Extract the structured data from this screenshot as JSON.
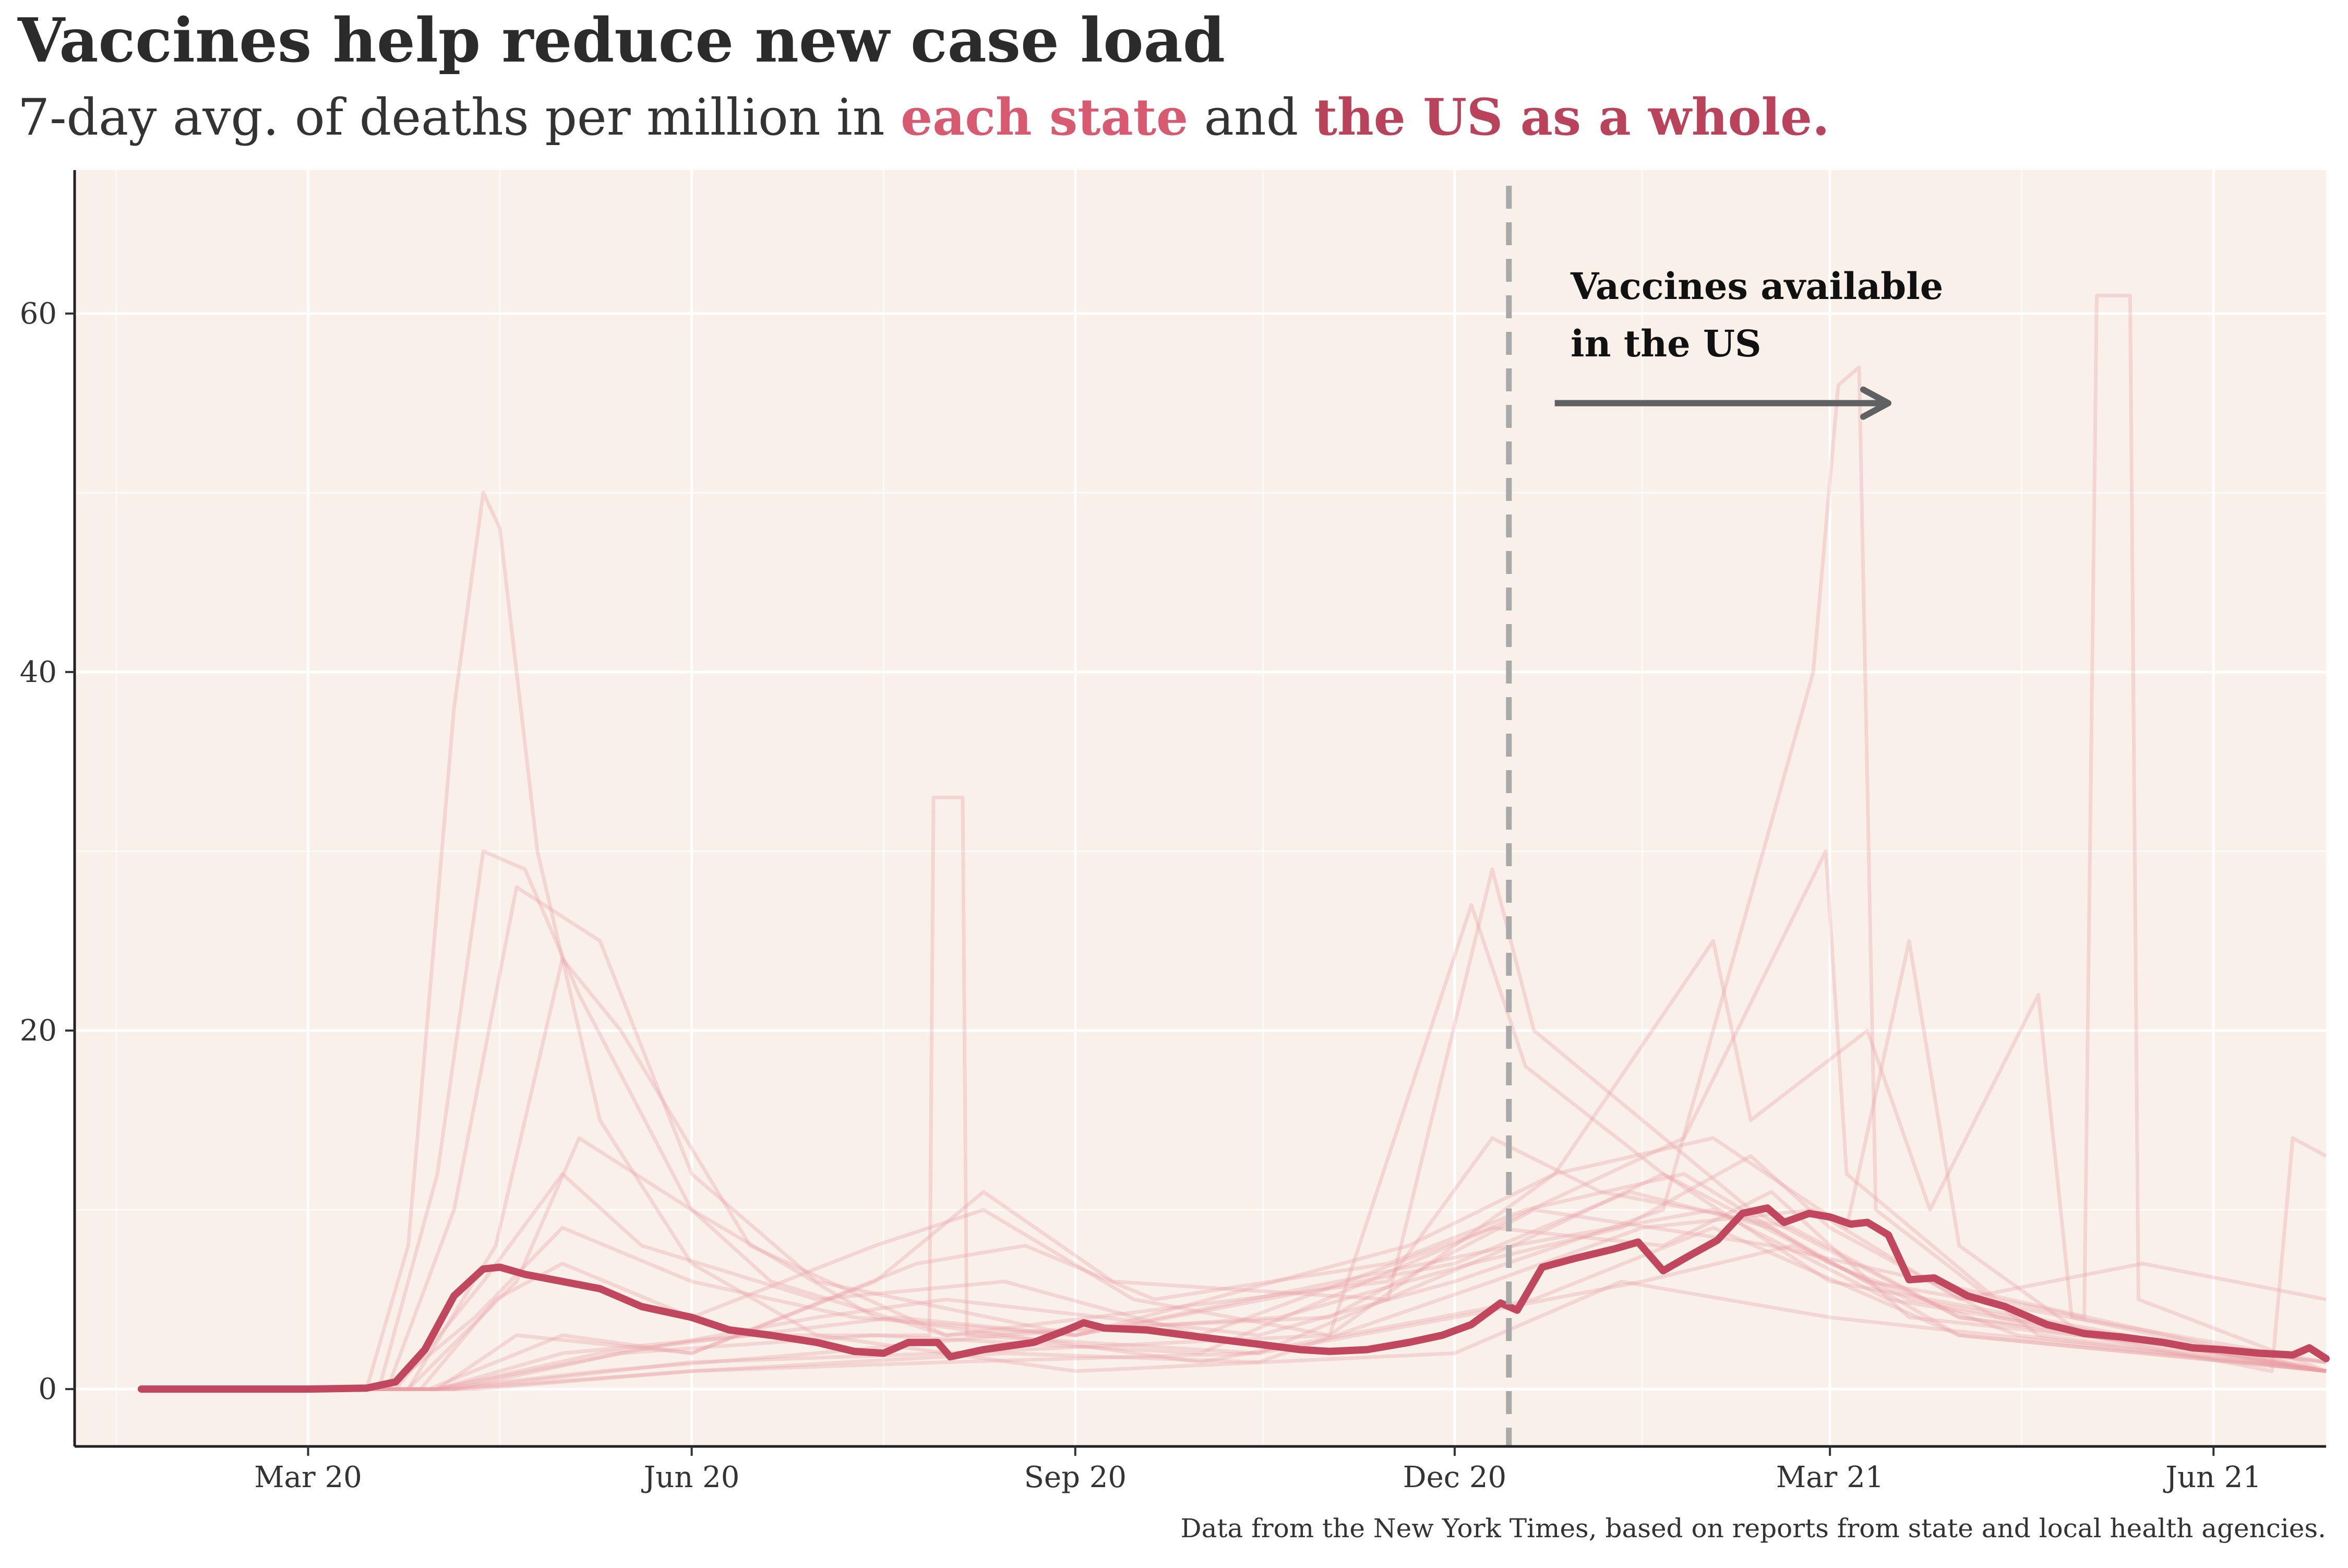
{
  "colors": {
    "panel_bg": "#f8f0e9",
    "grid": "#ffffff",
    "state_line": "#e8a0a6",
    "us_line": "#c0475d",
    "subtitle_each_state": "#d85a70",
    "subtitle_us": "#b8435a",
    "vline": "#a9a9a9",
    "arrow": "#5f6163"
  },
  "chart_data": {
    "type": "line",
    "title": "Vaccines help reduce new case load",
    "subtitle": {
      "prefix": "7-day avg. of deaths per million in ",
      "each_state": "each state",
      "mid": " and ",
      "us": "the US as a whole."
    },
    "caption": "Data from the New York Times, based on reports from state and local health agencies.",
    "xlabel": "",
    "ylabel": "",
    "x_ticks": [
      "Mar 20",
      "Jun 20",
      "Sep 20",
      "Dec 20",
      "Mar 21",
      "Jun 21"
    ],
    "x_tick_dates": [
      "2020-03-01",
      "2020-06-01",
      "2020-09-01",
      "2020-12-01",
      "2021-03-01",
      "2021-06-01"
    ],
    "y_ticks": [
      0,
      20,
      40,
      60
    ],
    "xlim": [
      "2020-01-05",
      "2021-06-28"
    ],
    "ylim": [
      -3.2,
      68
    ],
    "grid": true,
    "vline": {
      "x": "2020-12-14",
      "style": "dashed"
    },
    "annotation": {
      "lines": [
        "Vaccines available",
        "in the US"
      ],
      "arrow_from": "2020-12-25",
      "arrow_to": "2021-03-15",
      "arrow_y": 55
    },
    "us_series": {
      "name": "the US as a whole.",
      "points": [
        [
          "2020-01-21",
          0
        ],
        [
          "2020-03-01",
          0
        ],
        [
          "2020-03-15",
          0.05
        ],
        [
          "2020-03-22",
          0.4
        ],
        [
          "2020-03-29",
          2.2
        ],
        [
          "2020-04-05",
          5.2
        ],
        [
          "2020-04-12",
          6.7
        ],
        [
          "2020-04-16",
          6.8
        ],
        [
          "2020-04-22",
          6.4
        ],
        [
          "2020-05-01",
          6.0
        ],
        [
          "2020-05-10",
          5.6
        ],
        [
          "2020-05-20",
          4.6
        ],
        [
          "2020-06-01",
          4.0
        ],
        [
          "2020-06-10",
          3.3
        ],
        [
          "2020-06-20",
          3.0
        ],
        [
          "2020-07-01",
          2.6
        ],
        [
          "2020-07-10",
          2.1
        ],
        [
          "2020-07-17",
          2.0
        ],
        [
          "2020-07-23",
          2.6
        ],
        [
          "2020-07-30",
          2.6
        ],
        [
          "2020-08-02",
          1.8
        ],
        [
          "2020-08-10",
          2.2
        ],
        [
          "2020-08-22",
          2.6
        ],
        [
          "2020-08-30",
          3.3
        ],
        [
          "2020-09-03",
          3.7
        ],
        [
          "2020-09-08",
          3.4
        ],
        [
          "2020-09-18",
          3.3
        ],
        [
          "2020-10-01",
          2.9
        ],
        [
          "2020-10-15",
          2.5
        ],
        [
          "2020-10-25",
          2.2
        ],
        [
          "2020-11-01",
          2.1
        ],
        [
          "2020-11-10",
          2.2
        ],
        [
          "2020-11-20",
          2.6
        ],
        [
          "2020-11-28",
          3.0
        ],
        [
          "2020-12-05",
          3.6
        ],
        [
          "2020-12-12",
          4.8
        ],
        [
          "2020-12-16",
          4.4
        ],
        [
          "2020-12-22",
          6.8
        ],
        [
          "2020-12-30",
          7.3
        ],
        [
          "2021-01-08",
          7.8
        ],
        [
          "2021-01-14",
          8.2
        ],
        [
          "2021-01-20",
          6.6
        ],
        [
          "2021-01-26",
          7.4
        ],
        [
          "2021-02-02",
          8.3
        ],
        [
          "2021-02-08",
          9.8
        ],
        [
          "2021-02-14",
          10.1
        ],
        [
          "2021-02-18",
          9.3
        ],
        [
          "2021-02-24",
          9.8
        ],
        [
          "2021-03-01",
          9.6
        ],
        [
          "2021-03-06",
          9.2
        ],
        [
          "2021-03-10",
          9.3
        ],
        [
          "2021-03-15",
          8.6
        ],
        [
          "2021-03-20",
          6.1
        ],
        [
          "2021-03-26",
          6.2
        ],
        [
          "2021-04-03",
          5.2
        ],
        [
          "2021-04-12",
          4.6
        ],
        [
          "2021-04-22",
          3.6
        ],
        [
          "2021-05-01",
          3.1
        ],
        [
          "2021-05-10",
          2.9
        ],
        [
          "2021-05-20",
          2.6
        ],
        [
          "2021-05-27",
          2.3
        ],
        [
          "2021-06-03",
          2.2
        ],
        [
          "2021-06-12",
          2.0
        ],
        [
          "2021-06-20",
          1.9
        ],
        [
          "2021-06-24",
          2.3
        ],
        [
          "2021-06-28",
          1.7
        ]
      ]
    },
    "state_series_note": "each state",
    "state_series": [
      [
        [
          "2020-01-21",
          0
        ],
        [
          "2020-03-15",
          0
        ],
        [
          "2020-03-25",
          8
        ],
        [
          "2020-04-05",
          38
        ],
        [
          "2020-04-12",
          50
        ],
        [
          "2020-04-16",
          48
        ],
        [
          "2020-04-25",
          30
        ],
        [
          "2020-05-10",
          15
        ],
        [
          "2020-06-01",
          7
        ],
        [
          "2020-07-01",
          3
        ],
        [
          "2020-09-01",
          1
        ],
        [
          "2020-12-01",
          2
        ],
        [
          "2021-01-10",
          6
        ],
        [
          "2021-03-01",
          4
        ],
        [
          "2021-06-28",
          1
        ]
      ],
      [
        [
          "2020-01-21",
          0
        ],
        [
          "2020-03-18",
          0
        ],
        [
          "2020-04-01",
          12
        ],
        [
          "2020-04-12",
          30
        ],
        [
          "2020-04-22",
          29
        ],
        [
          "2020-05-05",
          22
        ],
        [
          "2020-06-01",
          10
        ],
        [
          "2020-07-15",
          4
        ],
        [
          "2020-10-01",
          1.5
        ],
        [
          "2020-12-20",
          5
        ],
        [
          "2021-02-01",
          9
        ],
        [
          "2021-04-01",
          3
        ],
        [
          "2021-06-28",
          1
        ]
      ],
      [
        [
          "2020-01-21",
          0
        ],
        [
          "2020-03-20",
          0
        ],
        [
          "2020-04-05",
          10
        ],
        [
          "2020-04-20",
          28
        ],
        [
          "2020-05-10",
          25
        ],
        [
          "2020-06-01",
          12
        ],
        [
          "2020-07-01",
          6
        ],
        [
          "2020-09-01",
          3
        ],
        [
          "2020-12-15",
          8
        ],
        [
          "2021-01-20",
          12
        ],
        [
          "2021-03-10",
          6
        ],
        [
          "2021-06-28",
          1.5
        ]
      ],
      [
        [
          "2020-01-21",
          0
        ],
        [
          "2020-03-25",
          0
        ],
        [
          "2020-04-15",
          8
        ],
        [
          "2020-05-01",
          24
        ],
        [
          "2020-05-15",
          20
        ],
        [
          "2020-06-15",
          8
        ],
        [
          "2020-08-01",
          3
        ],
        [
          "2020-11-01",
          4
        ],
        [
          "2020-12-20",
          10
        ],
        [
          "2021-02-15",
          8
        ],
        [
          "2021-06-28",
          1
        ]
      ],
      [
        [
          "2020-01-21",
          0
        ],
        [
          "2020-03-25",
          0
        ],
        [
          "2020-04-20",
          6
        ],
        [
          "2020-05-05",
          14
        ],
        [
          "2020-06-01",
          10
        ],
        [
          "2020-06-20",
          6
        ],
        [
          "2020-08-01",
          3
        ],
        [
          "2020-11-15",
          6
        ],
        [
          "2020-12-10",
          14
        ],
        [
          "2021-01-05",
          11
        ],
        [
          "2021-02-20",
          9
        ],
        [
          "2021-04-01",
          4
        ],
        [
          "2021-06-28",
          1
        ]
      ],
      [
        [
          "2020-01-21",
          0
        ],
        [
          "2020-03-28",
          0
        ],
        [
          "2020-04-15",
          5
        ],
        [
          "2020-05-01",
          7
        ],
        [
          "2020-06-01",
          4
        ],
        [
          "2020-07-15",
          8
        ],
        [
          "2020-08-10",
          10
        ],
        [
          "2020-09-15",
          5
        ],
        [
          "2020-11-01",
          3
        ],
        [
          "2020-12-05",
          27
        ],
        [
          "2020-12-18",
          18
        ],
        [
          "2021-01-20",
          12
        ],
        [
          "2021-03-01",
          6
        ],
        [
          "2021-06-28",
          1
        ]
      ],
      [
        [
          "2020-01-21",
          0
        ],
        [
          "2020-04-01",
          0
        ],
        [
          "2020-04-20",
          3
        ],
        [
          "2020-06-01",
          2
        ],
        [
          "2020-07-15",
          6
        ],
        [
          "2020-08-10",
          11
        ],
        [
          "2020-09-10",
          6
        ],
        [
          "2020-11-15",
          5
        ],
        [
          "2020-12-10",
          29
        ],
        [
          "2020-12-20",
          20
        ],
        [
          "2021-02-10",
          10
        ],
        [
          "2021-04-01",
          4
        ],
        [
          "2021-06-28",
          1.5
        ]
      ],
      [
        [
          "2020-01-21",
          0
        ],
        [
          "2020-04-01",
          0
        ],
        [
          "2020-05-01",
          2
        ],
        [
          "2020-06-15",
          3
        ],
        [
          "2020-07-28",
          3
        ],
        [
          "2020-07-29",
          33
        ],
        [
          "2020-08-05",
          33
        ],
        [
          "2020-08-06",
          3
        ],
        [
          "2020-10-15",
          2
        ],
        [
          "2020-12-15",
          8
        ],
        [
          "2021-02-01",
          10
        ],
        [
          "2021-03-15",
          5
        ],
        [
          "2021-06-28",
          1
        ]
      ],
      [
        [
          "2020-01-21",
          0
        ],
        [
          "2020-04-01",
          0
        ],
        [
          "2020-05-15",
          2
        ],
        [
          "2020-07-01",
          4
        ],
        [
          "2020-08-01",
          5
        ],
        [
          "2020-10-15",
          3
        ],
        [
          "2020-12-01",
          6
        ],
        [
          "2021-01-20",
          10
        ],
        [
          "2021-02-25",
          40
        ],
        [
          "2021-03-03",
          56
        ],
        [
          "2021-03-08",
          57
        ],
        [
          "2021-03-12",
          10
        ],
        [
          "2021-04-20",
          3
        ],
        [
          "2021-06-28",
          1
        ]
      ],
      [
        [
          "2020-01-21",
          0
        ],
        [
          "2020-04-05",
          0
        ],
        [
          "2020-05-15",
          2
        ],
        [
          "2020-07-15",
          3
        ],
        [
          "2020-10-01",
          2
        ],
        [
          "2020-12-10",
          9
        ],
        [
          "2021-01-25",
          14
        ],
        [
          "2021-02-28",
          30
        ],
        [
          "2021-03-05",
          12
        ],
        [
          "2021-04-10",
          5
        ],
        [
          "2021-05-01",
          4
        ],
        [
          "2021-05-04",
          61
        ],
        [
          "2021-05-12",
          61
        ],
        [
          "2021-05-14",
          5
        ],
        [
          "2021-06-28",
          1
        ]
      ],
      [
        [
          "2020-01-21",
          0
        ],
        [
          "2020-04-05",
          0
        ],
        [
          "2020-06-01",
          1.5
        ],
        [
          "2020-08-01",
          2
        ],
        [
          "2020-11-01",
          3
        ],
        [
          "2020-12-25",
          12
        ],
        [
          "2021-02-01",
          25
        ],
        [
          "2021-02-10",
          15
        ],
        [
          "2021-03-10",
          20
        ],
        [
          "2021-03-25",
          10
        ],
        [
          "2021-04-20",
          22
        ],
        [
          "2021-04-28",
          4
        ],
        [
          "2021-06-28",
          1
        ]
      ],
      [
        [
          "2020-01-21",
          0
        ],
        [
          "2020-04-01",
          0
        ],
        [
          "2020-05-10",
          2
        ],
        [
          "2020-07-20",
          4
        ],
        [
          "2020-09-01",
          3
        ],
        [
          "2020-11-20",
          8
        ],
        [
          "2020-12-25",
          12
        ],
        [
          "2021-02-01",
          14
        ],
        [
          "2021-03-05",
          9
        ],
        [
          "2021-03-20",
          25
        ],
        [
          "2021-04-01",
          8
        ],
        [
          "2021-05-01",
          3
        ],
        [
          "2021-06-15",
          1
        ],
        [
          "2021-06-20",
          14
        ],
        [
          "2021-06-28",
          13
        ]
      ],
      [
        [
          "2020-01-21",
          0
        ],
        [
          "2020-04-10",
          0
        ],
        [
          "2020-06-01",
          1
        ],
        [
          "2020-08-15",
          2
        ],
        [
          "2020-10-15",
          1.5
        ],
        [
          "2020-12-10",
          6
        ],
        [
          "2021-01-15",
          9
        ],
        [
          "2021-02-25",
          10
        ],
        [
          "2021-04-01",
          5
        ],
        [
          "2021-05-15",
          7
        ],
        [
          "2021-06-28",
          5
        ]
      ],
      [
        [
          "2020-01-21",
          0
        ],
        [
          "2020-03-20",
          0
        ],
        [
          "2020-04-10",
          4
        ],
        [
          "2020-05-01",
          9
        ],
        [
          "2020-06-01",
          6
        ],
        [
          "2020-07-10",
          4
        ],
        [
          "2020-09-01",
          3
        ],
        [
          "2020-12-01",
          7
        ],
        [
          "2021-01-12",
          11
        ],
        [
          "2021-02-15",
          9
        ],
        [
          "2021-04-01",
          3
        ],
        [
          "2021-06-28",
          1
        ]
      ],
      [
        [
          "2020-01-21",
          0
        ],
        [
          "2020-03-22",
          0
        ],
        [
          "2020-04-12",
          6
        ],
        [
          "2020-05-01",
          12
        ],
        [
          "2020-05-20",
          8
        ],
        [
          "2020-07-01",
          5
        ],
        [
          "2020-08-15",
          6
        ],
        [
          "2020-10-01",
          3
        ],
        [
          "2020-12-10",
          9
        ],
        [
          "2021-01-20",
          8
        ],
        [
          "2021-02-15",
          11
        ],
        [
          "2021-03-20",
          4
        ],
        [
          "2021-06-28",
          1.5
        ]
      ],
      [
        [
          "2020-01-21",
          0
        ],
        [
          "2020-03-30",
          0
        ],
        [
          "2020-05-01",
          3
        ],
        [
          "2020-06-01",
          2
        ],
        [
          "2020-07-25",
          7
        ],
        [
          "2020-08-20",
          8
        ],
        [
          "2020-09-20",
          5
        ],
        [
          "2020-11-15",
          7
        ],
        [
          "2020-12-18",
          10
        ],
        [
          "2021-01-25",
          12
        ],
        [
          "2021-03-01",
          7
        ],
        [
          "2021-04-15",
          3
        ],
        [
          "2021-06-28",
          1
        ]
      ],
      [
        [
          "2020-01-21",
          0
        ],
        [
          "2020-04-01",
          0
        ],
        [
          "2020-05-10",
          1
        ],
        [
          "2020-07-01",
          2
        ],
        [
          "2020-08-15",
          3
        ],
        [
          "2020-10-20",
          4
        ],
        [
          "2020-12-05",
          7
        ],
        [
          "2021-01-10",
          9
        ],
        [
          "2021-02-10",
          13
        ],
        [
          "2021-03-01",
          9
        ],
        [
          "2021-04-10",
          4
        ],
        [
          "2021-06-28",
          1
        ]
      ],
      [
        [
          "2020-01-21",
          0
        ],
        [
          "2020-04-05",
          0
        ],
        [
          "2020-06-01",
          1
        ],
        [
          "2020-08-01",
          1.5
        ],
        [
          "2020-10-15",
          2
        ],
        [
          "2020-12-01",
          4
        ],
        [
          "2021-01-15",
          6
        ],
        [
          "2021-02-20",
          8
        ],
        [
          "2021-03-20",
          5
        ],
        [
          "2021-06-28",
          1
        ]
      ]
    ]
  }
}
